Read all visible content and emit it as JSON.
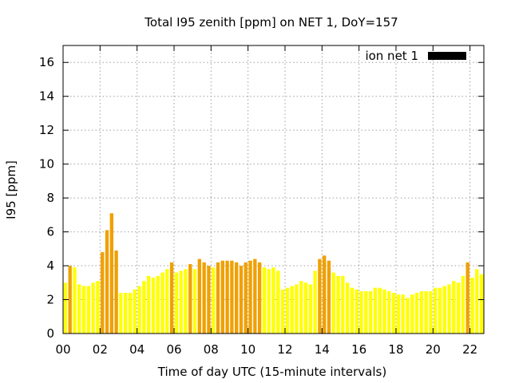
{
  "chart_data": {
    "type": "bar",
    "title": "Total I95 zenith [ppm] on NET 1, DoY=157",
    "xlabel": "Time of day UTC (15-minute intervals)",
    "ylabel": "I95 [ppm]",
    "xlim": [
      0,
      22.75
    ],
    "ylim": [
      0,
      17
    ],
    "x_ticks": [
      "00",
      "02",
      "04",
      "06",
      "08",
      "10",
      "12",
      "14",
      "16",
      "18",
      "20",
      "22"
    ],
    "y_ticks": [
      "0",
      "2",
      "4",
      "6",
      "8",
      "10",
      "12",
      "14",
      "16"
    ],
    "grid": true,
    "legend_position": "top-right",
    "series": [
      {
        "name": "ion net 1",
        "color_low": "#ffff00",
        "color_high": "#f0a000",
        "threshold": 4.0,
        "interval_hours": 0.25,
        "values": [
          3.0,
          4.0,
          3.9,
          2.9,
          2.8,
          2.8,
          3.0,
          3.1,
          4.8,
          6.1,
          7.1,
          4.9,
          2.4,
          2.4,
          2.4,
          2.6,
          2.8,
          3.1,
          3.4,
          3.3,
          3.4,
          3.6,
          3.8,
          4.2,
          3.6,
          3.7,
          3.8,
          4.1,
          3.8,
          4.4,
          4.2,
          4.0,
          3.9,
          4.2,
          4.3,
          4.3,
          4.3,
          4.2,
          4.0,
          4.2,
          4.3,
          4.4,
          4.2,
          3.9,
          3.8,
          3.9,
          3.7,
          2.6,
          2.7,
          2.8,
          2.9,
          3.1,
          3.0,
          2.9,
          3.7,
          4.4,
          4.6,
          4.3,
          3.6,
          3.4,
          3.4,
          3.0,
          2.7,
          2.6,
          2.5,
          2.5,
          2.5,
          2.7,
          2.7,
          2.6,
          2.5,
          2.4,
          2.3,
          2.3,
          2.1,
          2.3,
          2.4,
          2.5,
          2.5,
          2.5,
          2.7,
          2.7,
          2.8,
          2.9,
          3.1,
          3.0,
          3.4,
          4.2,
          3.3,
          3.8,
          3.5
        ]
      }
    ]
  }
}
